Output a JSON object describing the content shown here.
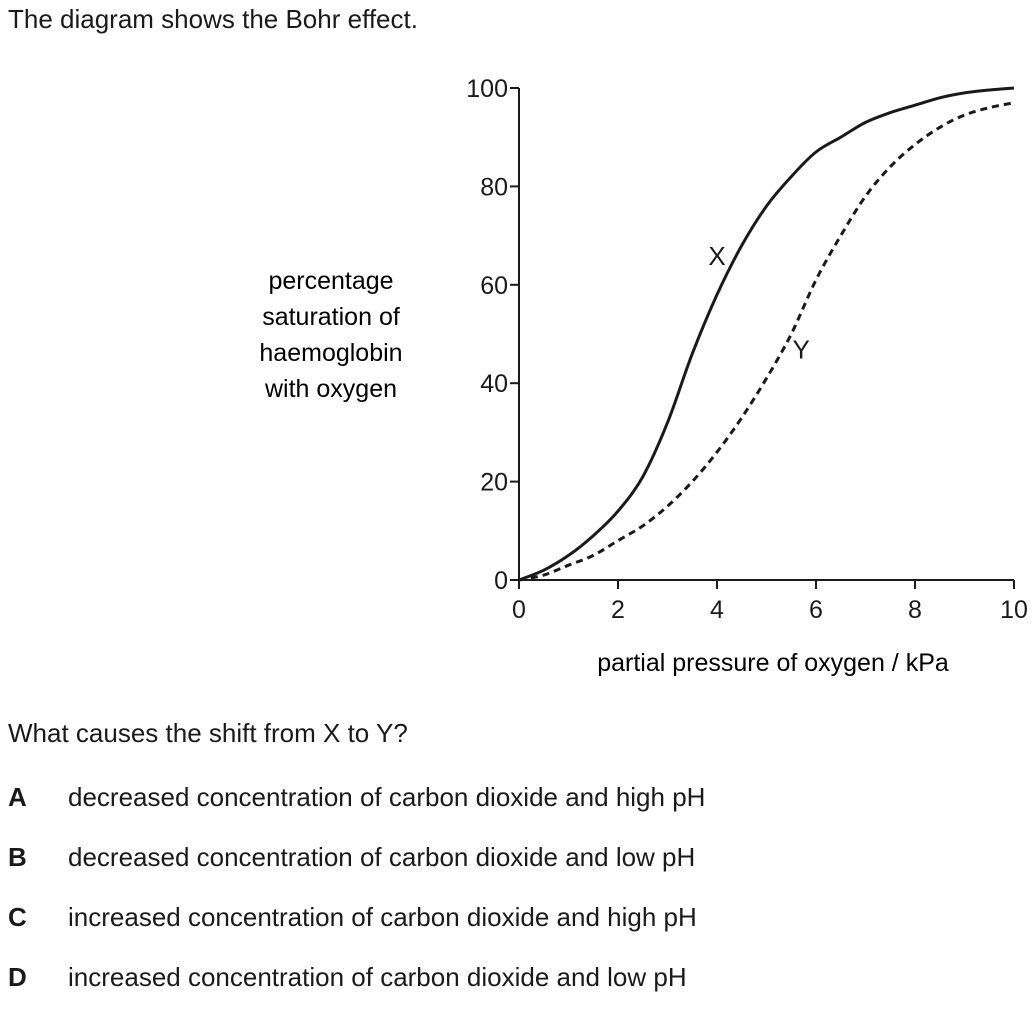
{
  "intro": "The diagram shows the Bohr effect.",
  "question": "What causes the shift from X to Y?",
  "options": [
    {
      "letter": "A",
      "text": "decreased concentration of carbon dioxide and high pH"
    },
    {
      "letter": "B",
      "text": "decreased concentration of carbon dioxide and low pH"
    },
    {
      "letter": "C",
      "text": "increased concentration of carbon dioxide and high pH"
    },
    {
      "letter": "D",
      "text": "increased concentration of carbon dioxide and low pH"
    }
  ],
  "chart_data": {
    "type": "line",
    "xlabel": "partial pressure of oxygen / kPa",
    "ylabel_lines": [
      "percentage",
      "saturation of",
      "haemoglobin",
      "with oxygen"
    ],
    "xlim": [
      0,
      10
    ],
    "ylim": [
      0,
      100
    ],
    "xticks": [
      0,
      2,
      4,
      6,
      8,
      10
    ],
    "yticks": [
      0,
      20,
      40,
      60,
      80,
      100
    ],
    "grid": false,
    "series": [
      {
        "name": "X",
        "style": "solid",
        "color": "#1a1a1a",
        "x": [
          0,
          0.5,
          1,
          1.5,
          2,
          2.5,
          3,
          3.5,
          4,
          4.5,
          5,
          5.5,
          6,
          6.5,
          7,
          7.5,
          8,
          8.5,
          9,
          9.5,
          10
        ],
        "y": [
          0,
          2,
          5,
          9,
          14,
          21,
          32,
          46,
          58,
          68,
          76,
          82,
          87,
          90,
          93,
          95,
          96.5,
          98,
          99,
          99.6,
          100
        ]
      },
      {
        "name": "Y",
        "style": "dashed",
        "color": "#1a1a1a",
        "x": [
          0,
          0.5,
          1,
          1.5,
          2,
          2.5,
          3,
          3.5,
          4,
          4.5,
          5,
          5.5,
          6,
          6.5,
          7,
          7.5,
          8,
          8.5,
          9,
          9.5,
          10
        ],
        "y": [
          0,
          1,
          3,
          5,
          8,
          11,
          15,
          20,
          26,
          33,
          41,
          50,
          61,
          70,
          78,
          84,
          88.5,
          92,
          94.5,
          96,
          97
        ]
      }
    ],
    "annotations": [
      {
        "text": "X",
        "x": 4.0,
        "y": 64
      },
      {
        "text": "Y",
        "x": 5.7,
        "y": 45
      }
    ]
  }
}
